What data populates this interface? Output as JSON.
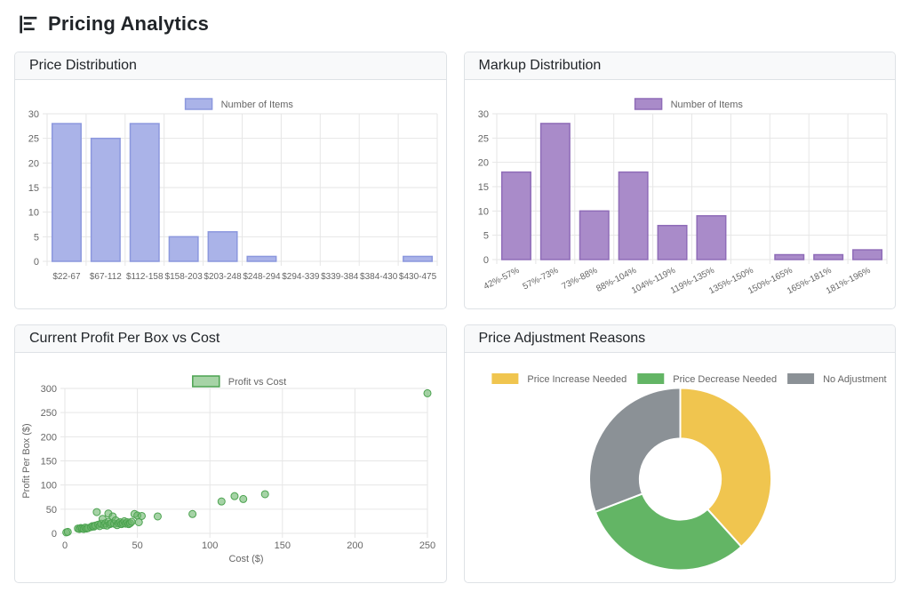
{
  "header": {
    "title": "Pricing Analytics",
    "icon": "bar-chart-icon"
  },
  "cards": [
    {
      "title": "Price Distribution"
    },
    {
      "title": "Markup Distribution"
    },
    {
      "title": "Current Profit Per Box vs Cost"
    },
    {
      "title": "Price Adjustment Reasons"
    }
  ],
  "chart_data": [
    {
      "type": "bar",
      "title": "Price Distribution",
      "legend": "Number of Items",
      "categories": [
        "$22-67",
        "$67-112",
        "$112-158",
        "$158-203",
        "$203-248",
        "$248-294",
        "$294-339",
        "$339-384",
        "$384-430",
        "$430-475"
      ],
      "values": [
        28,
        25,
        28,
        5,
        6,
        1,
        0,
        0,
        0,
        1
      ],
      "ylim": [
        0,
        30
      ],
      "ytick_step": 5,
      "rotate_labels": 0,
      "colors": {
        "fill": "#aab3e8",
        "border": "#8c98de"
      }
    },
    {
      "type": "bar",
      "title": "Markup Distribution",
      "legend": "Number of Items",
      "categories": [
        "42%-57%",
        "57%-73%",
        "73%-88%",
        "88%-104%",
        "104%-119%",
        "119%-135%",
        "135%-150%",
        "150%-165%",
        "165%-181%",
        "181%-196%"
      ],
      "values": [
        18,
        28,
        10,
        18,
        7,
        9,
        0,
        1,
        1,
        2
      ],
      "ylim": [
        0,
        30
      ],
      "ytick_step": 5,
      "rotate_labels": -27,
      "colors": {
        "fill": "#a98bc9",
        "border": "#8f6cb8"
      }
    },
    {
      "type": "scatter",
      "title": "Current Profit Per Box vs Cost",
      "legend": "Profit vs Cost",
      "xlabel": "Cost ($)",
      "ylabel": "Profit Per Box ($)",
      "xlim": [
        0,
        250
      ],
      "ylim": [
        0,
        300
      ],
      "xtick_step": 50,
      "ytick_step": 50,
      "points": [
        [
          1,
          2
        ],
        [
          2,
          3
        ],
        [
          9,
          10
        ],
        [
          10,
          9
        ],
        [
          11,
          11
        ],
        [
          12,
          10
        ],
        [
          13,
          9
        ],
        [
          14,
          12
        ],
        [
          15,
          10
        ],
        [
          16,
          11
        ],
        [
          18,
          13
        ],
        [
          19,
          15
        ],
        [
          20,
          14
        ],
        [
          21,
          16
        ],
        [
          22,
          44
        ],
        [
          23,
          18
        ],
        [
          24,
          15
        ],
        [
          25,
          20
        ],
        [
          26,
          30
        ],
        [
          27,
          17
        ],
        [
          28,
          21
        ],
        [
          29,
          16
        ],
        [
          30,
          41
        ],
        [
          30,
          24
        ],
        [
          31,
          19
        ],
        [
          32,
          21
        ],
        [
          33,
          35
        ],
        [
          34,
          20
        ],
        [
          35,
          27
        ],
        [
          36,
          17
        ],
        [
          37,
          21
        ],
        [
          38,
          23
        ],
        [
          39,
          19
        ],
        [
          40,
          21
        ],
        [
          41,
          25
        ],
        [
          42,
          20
        ],
        [
          43,
          23
        ],
        [
          44,
          19
        ],
        [
          45,
          21
        ],
        [
          46,
          24
        ],
        [
          48,
          40
        ],
        [
          50,
          37
        ],
        [
          51,
          23
        ],
        [
          53,
          36
        ],
        [
          64,
          35
        ],
        [
          88,
          40
        ],
        [
          108,
          66
        ],
        [
          117,
          77
        ],
        [
          123,
          71
        ],
        [
          138,
          81
        ],
        [
          250,
          290
        ]
      ],
      "colors": {
        "fill": "rgba(106,181,106,0.6)",
        "border": "#4ca350"
      }
    },
    {
      "type": "doughnut",
      "title": "Price Adjustment Reasons",
      "segments": [
        {
          "label": "Price Increase Needed",
          "value": 36,
          "color": "#f0c54f"
        },
        {
          "label": "Price Decrease Needed",
          "value": 29,
          "color": "#63b565"
        },
        {
          "label": "No Adjustment",
          "value": 29,
          "color": "#8b9196"
        }
      ]
    }
  ]
}
